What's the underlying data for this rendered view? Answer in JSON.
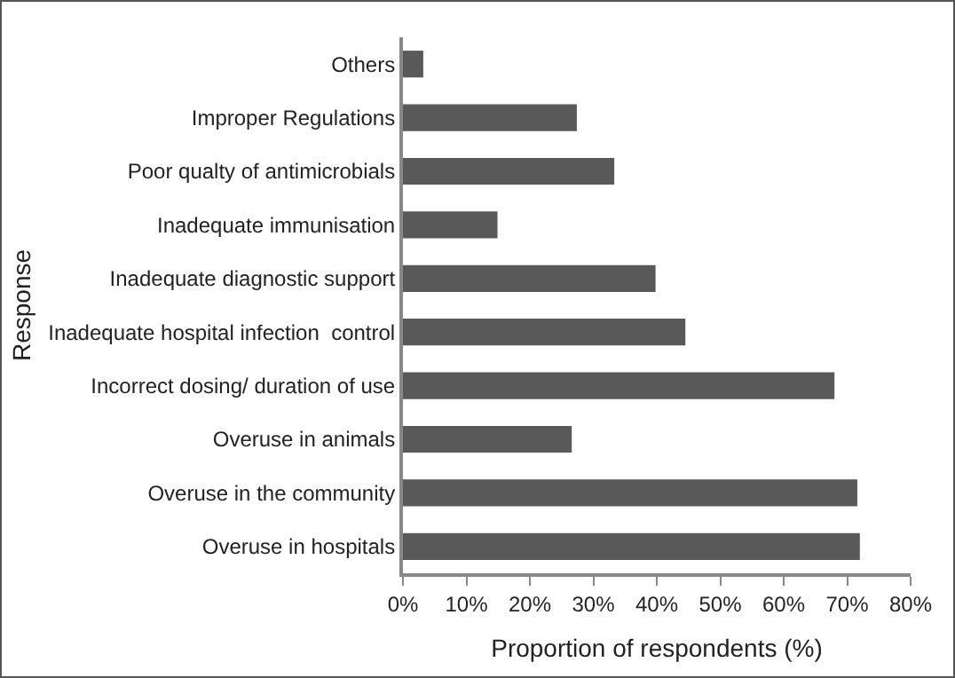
{
  "chart_data": {
    "type": "bar",
    "orientation": "horizontal",
    "xlabel": "Proportion of respondents (%)",
    "ylabel": "Response",
    "categories": [
      "Others",
      "Improper Regulations",
      "Poor qualty of antimicrobials",
      "Inadequate immunisation",
      "Inadequate diagnostic support",
      "Inadequate hospital infection  control",
      "Incorrect dosing/ duration of use",
      "Overuse in animals",
      "Overuse in the community",
      "Overuse in hospitals"
    ],
    "values": [
      3.2,
      27.4,
      33.3,
      14.9,
      39.8,
      44.5,
      68.0,
      26.6,
      71.6,
      72.0
    ],
    "color": "#595959",
    "xlim": [
      0,
      80
    ],
    "xticks": [
      {
        "value": 0,
        "label": "0%"
      },
      {
        "value": 10,
        "label": "10%"
      },
      {
        "value": 20,
        "label": "20%"
      },
      {
        "value": 30,
        "label": "30%"
      },
      {
        "value": 40,
        "label": "40%"
      },
      {
        "value": 50,
        "label": "50%"
      },
      {
        "value": 60,
        "label": "60%"
      },
      {
        "value": 70,
        "label": "70%"
      },
      {
        "value": 80,
        "label": "80%"
      }
    ],
    "grid": false
  }
}
